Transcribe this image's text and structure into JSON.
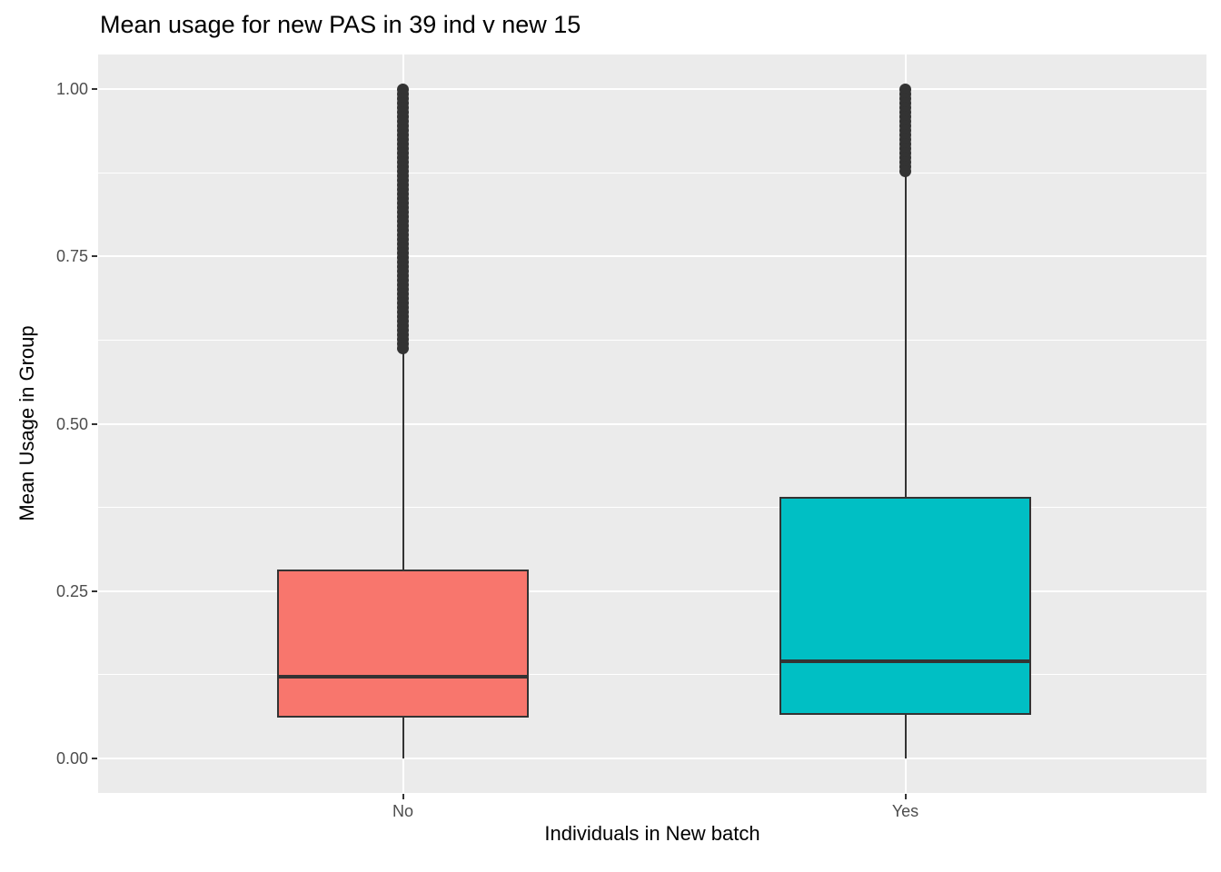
{
  "title": "Mean usage for new PAS in 39 ind v new 15",
  "chart_data": {
    "type": "boxplot",
    "title": "Mean usage for new PAS in 39 ind v new 15",
    "xlabel": "Individuals in New batch",
    "ylabel": "Mean Usage in Group",
    "categories": [
      "No",
      "Yes"
    ],
    "y_ticks": {
      "labels": [
        "0.00",
        "0.25",
        "0.50",
        "0.75",
        "1.00"
      ],
      "values": [
        0,
        0.25,
        0.5,
        0.75,
        1.0
      ]
    },
    "ylim": [
      -0.05,
      1.05
    ],
    "major_gridlines": [
      0,
      0.25,
      0.5,
      0.75,
      1.0
    ],
    "minor_gridlines": [
      0.125,
      0.375,
      0.625,
      0.875
    ],
    "legend_position": "none",
    "series": [
      {
        "name": "No",
        "fill_color": "#F8766D",
        "lower_whisker": 0.0,
        "q1": 0.061,
        "median": 0.122,
        "q3": 0.282,
        "upper_whisker": 0.607,
        "outliers_range": [
          0.61,
          1.0
        ],
        "outliers_dense_stack": true
      },
      {
        "name": "Yes",
        "fill_color": "#00BFC4",
        "lower_whisker": 0.0,
        "q1": 0.065,
        "median": 0.145,
        "q3": 0.391,
        "upper_whisker": 0.873,
        "outliers_range": [
          0.875,
          1.0
        ],
        "outliers_dense_stack": true
      }
    ],
    "style": {
      "panel_background": "#EBEBEB",
      "gridline_color": "#FFFFFF",
      "box_border_color": "#333333",
      "median_color": "#333333",
      "whisker_color": "#333333",
      "outlier_color": "#333333",
      "tick_label_color": "#4d4d4d",
      "tick_mark_color": "#333333"
    }
  }
}
